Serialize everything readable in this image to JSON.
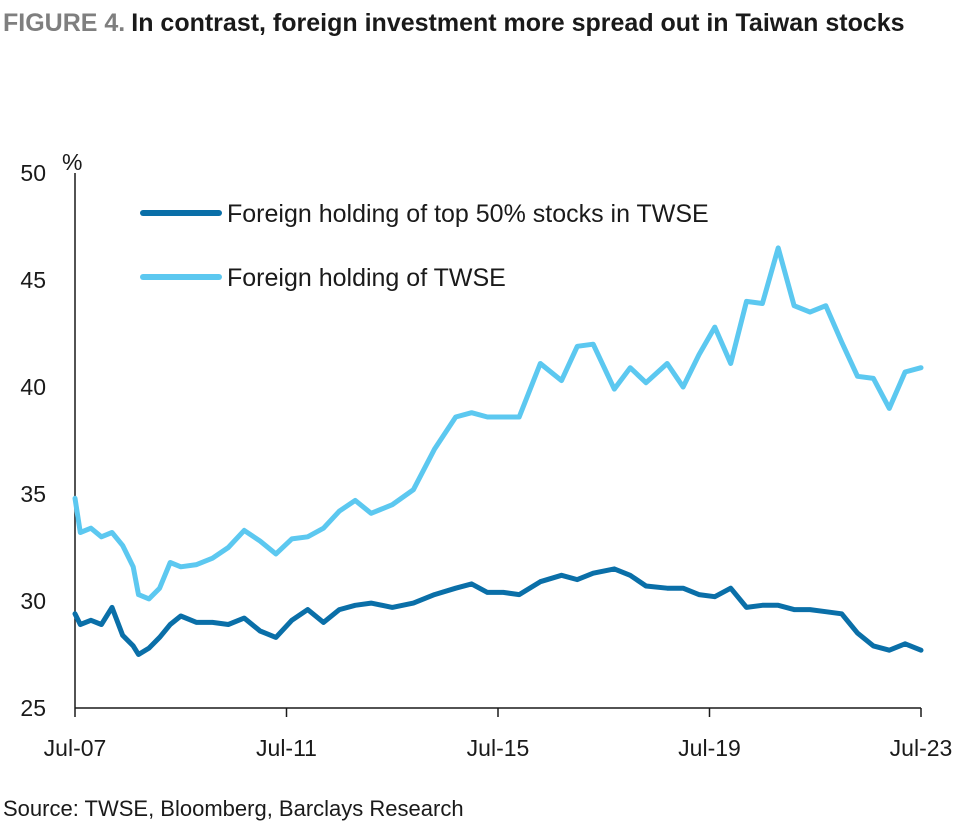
{
  "header": {
    "figure_label": "FIGURE 4.",
    "title": "In contrast, foreign investment more spread out in Taiwan stocks"
  },
  "source": "Source: TWSE, Bloomberg, Barclays Research",
  "chart_data": {
    "type": "line",
    "x_ticks": [
      "Jul-07",
      "Jul-11",
      "Jul-15",
      "Jul-19",
      "Jul-23"
    ],
    "ylabel": "%",
    "ylim": [
      25,
      50
    ],
    "y_ticks": [
      25,
      30,
      35,
      40,
      45,
      50
    ],
    "grid": false,
    "legend_position": "top-left",
    "series": [
      {
        "name": "Foreign holding of top 50% stocks in TWSE",
        "color": "#0a6fa8",
        "x": [
          2007.5,
          2007.6,
          2007.8,
          2008.0,
          2008.2,
          2008.4,
          2008.6,
          2008.7,
          2008.9,
          2009.1,
          2009.3,
          2009.5,
          2009.8,
          2010.1,
          2010.4,
          2010.7,
          2011.0,
          2011.3,
          2011.6,
          2011.9,
          2012.2,
          2012.5,
          2012.8,
          2013.1,
          2013.5,
          2013.9,
          2014.3,
          2014.7,
          2015.0,
          2015.3,
          2015.6,
          2015.9,
          2016.3,
          2016.7,
          2017.0,
          2017.3,
          2017.7,
          2018.0,
          2018.3,
          2018.7,
          2019.0,
          2019.3,
          2019.6,
          2019.9,
          2020.2,
          2020.5,
          2020.8,
          2021.1,
          2021.4,
          2021.7,
          2022.0,
          2022.3,
          2022.6,
          2022.9,
          2023.2,
          2023.5
        ],
        "values": [
          29.4,
          28.9,
          29.1,
          28.9,
          29.7,
          28.4,
          27.9,
          27.5,
          27.8,
          28.3,
          28.9,
          29.3,
          29.0,
          29.0,
          28.9,
          29.2,
          28.6,
          28.3,
          29.1,
          29.6,
          29.0,
          29.6,
          29.8,
          29.9,
          29.7,
          29.9,
          30.3,
          30.6,
          30.8,
          30.4,
          30.4,
          30.3,
          30.9,
          31.2,
          31.0,
          31.3,
          31.5,
          31.2,
          30.7,
          30.6,
          30.6,
          30.3,
          30.2,
          30.6,
          29.7,
          29.8,
          29.8,
          29.6,
          29.6,
          29.5,
          29.4,
          28.5,
          27.9,
          27.7,
          28.0,
          27.7
        ]
      },
      {
        "name": "Foreign holding of TWSE",
        "color": "#5cc8f0",
        "x": [
          2007.5,
          2007.6,
          2007.8,
          2008.0,
          2008.2,
          2008.4,
          2008.6,
          2008.7,
          2008.9,
          2009.1,
          2009.3,
          2009.5,
          2009.8,
          2010.1,
          2010.4,
          2010.7,
          2011.0,
          2011.3,
          2011.6,
          2011.9,
          2012.2,
          2012.5,
          2012.8,
          2013.1,
          2013.5,
          2013.9,
          2014.3,
          2014.7,
          2015.0,
          2015.3,
          2015.6,
          2015.9,
          2016.3,
          2016.7,
          2017.0,
          2017.3,
          2017.7,
          2018.0,
          2018.3,
          2018.7,
          2019.0,
          2019.3,
          2019.6,
          2019.9,
          2020.2,
          2020.5,
          2020.8,
          2021.1,
          2021.4,
          2021.7,
          2022.0,
          2022.3,
          2022.6,
          2022.9,
          2023.2,
          2023.5
        ],
        "values": [
          34.8,
          33.2,
          33.4,
          33.0,
          33.2,
          32.6,
          31.6,
          30.3,
          30.1,
          30.6,
          31.8,
          31.6,
          31.7,
          32.0,
          32.5,
          33.3,
          32.8,
          32.2,
          32.9,
          33.0,
          33.4,
          34.2,
          34.7,
          34.1,
          34.5,
          35.2,
          37.1,
          38.6,
          38.8,
          38.6,
          38.6,
          38.6,
          41.1,
          40.3,
          41.9,
          42.0,
          39.9,
          40.9,
          40.2,
          41.1,
          40.0,
          41.5,
          42.8,
          41.1,
          44.0,
          43.9,
          46.5,
          43.8,
          43.5,
          43.8,
          42.1,
          40.5,
          40.4,
          39.0,
          40.7,
          40.9
        ]
      }
    ]
  }
}
